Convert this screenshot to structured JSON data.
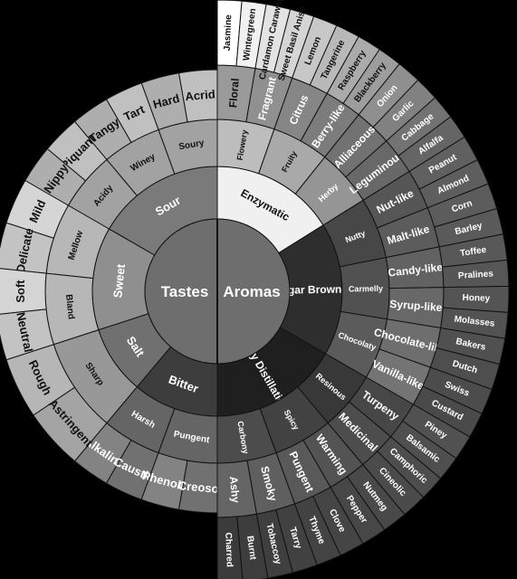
{
  "wheel": {
    "center_label_left": "Tastes",
    "center_label_right": "Aromas",
    "tastes": {
      "primaries": [
        {
          "name": "Sour",
          "secondaries": [
            {
              "name": "Soury",
              "tertiaries": [
                "Acrid",
                "Hard"
              ]
            },
            {
              "name": "Winey",
              "tertiaries": [
                "Tart",
                "Tangy"
              ]
            },
            {
              "name": "Acidy",
              "tertiaries": [
                "Piquant",
                "Nippy"
              ]
            }
          ]
        },
        {
          "name": "Sweet",
          "secondaries": [
            {
              "name": "Mellow",
              "tertiaries": [
                "Mild",
                "Delicate"
              ]
            },
            {
              "name": "Bland",
              "tertiaries": [
                "Soft",
                "Neutral"
              ]
            }
          ]
        },
        {
          "name": "Salt",
          "secondaries": [
            {
              "name": "Sharp",
              "tertiaries": [
                "Rough",
                "Astringent"
              ]
            }
          ]
        },
        {
          "name": "Bitter",
          "secondaries": [
            {
              "name": "Harsh",
              "tertiaries": [
                "Alkaline",
                "Caustic"
              ]
            },
            {
              "name": "Pungent",
              "tertiaries": [
                "Phenolic",
                "Creosol"
              ]
            }
          ]
        }
      ]
    },
    "aromas": {
      "primaries": [
        {
          "name": "Enzymatic",
          "secondaries": [
            {
              "name": "Flowery",
              "tertiaries": [
                "Floral",
                "Fragrant"
              ],
              "quaternaries": [
                "Jasmine",
                "Wintergreen",
                "Cardamon Caraway",
                "Sweet Basil Anise"
              ]
            },
            {
              "name": "Fruity",
              "tertiaries": [
                "Citrus",
                "Berry-like"
              ],
              "quaternaries": [
                "Lemon",
                "Tangerine",
                "Raspberry",
                "Blackberry"
              ]
            },
            {
              "name": "Herby",
              "tertiaries": [
                "Alliaceous",
                "Leguminous"
              ],
              "quaternaries": [
                "Onion",
                "Garlic",
                "Cabbage",
                "Alfalfa"
              ]
            }
          ]
        },
        {
          "name": "Sugar Browning",
          "secondaries": [
            {
              "name": "Nutty",
              "tertiaries": [
                "Nut-like",
                "Malt-like"
              ],
              "quaternaries": [
                "Peanut",
                "Almond",
                "Corn",
                "Barley"
              ]
            },
            {
              "name": "Carmelly",
              "tertiaries": [
                "Candy-like",
                "Syrup-like"
              ],
              "quaternaries": [
                "Toffee",
                "Pralines",
                "Honey",
                "Molasses"
              ]
            },
            {
              "name": "Chocolaty",
              "tertiaries": [
                "Chocolate-like",
                "Vanilla-like"
              ],
              "quaternaries": [
                "Bakers",
                "Dutch",
                "Swiss",
                "Custard"
              ]
            }
          ]
        },
        {
          "name": "Dry Distillation",
          "secondaries": [
            {
              "name": "Resinous",
              "tertiaries": [
                "Turpeny",
                "Medicinal"
              ],
              "quaternaries": [
                "Piney",
                "Balsamic",
                "Camphoric",
                "Cineolic"
              ]
            },
            {
              "name": "Spicy",
              "tertiaries": [
                "Warming",
                "Pungent"
              ],
              "quaternaries": [
                "Nutmeg",
                "Pepper",
                "Clove",
                "Thyme"
              ]
            },
            {
              "name": "Carbony",
              "tertiaries": [
                "Smoky",
                "Ashy"
              ],
              "quaternaries": [
                "Tarry",
                "Tobaccoy",
                "Burnt",
                "Charred"
              ]
            }
          ]
        }
      ]
    },
    "colors": {
      "background": "#000000",
      "center": "#6e6e6e",
      "sour": "#7a7a7a",
      "sweet": "#8f8f8f",
      "salt": "#707070",
      "bitter": "#3d3d3d",
      "enzymatic": "#f0f0f0",
      "sugar_browning": "#2e2e2e",
      "dry_distillation": "#1f1f1f"
    }
  }
}
